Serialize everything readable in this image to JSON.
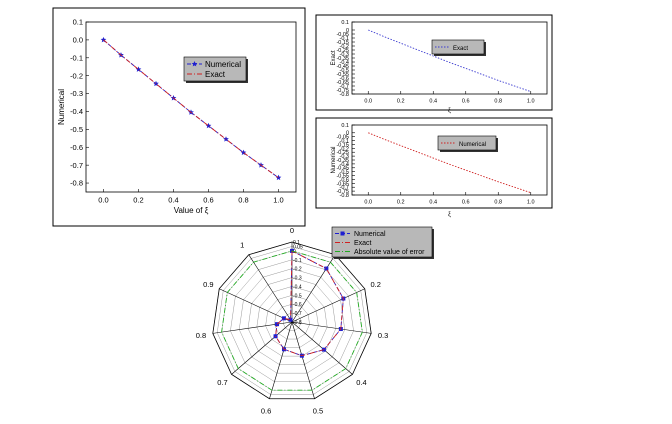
{
  "chart_data": [
    {
      "type": "line",
      "xlabel": "Value of ξ",
      "ylabel": "Numerical",
      "xlim": [
        -0.1,
        1.1
      ],
      "ylim": [
        -0.85,
        0.1
      ],
      "xticks": [
        "0.0",
        "0.2",
        "0.4",
        "0.6",
        "0.8",
        "1.0"
      ],
      "yticks": [
        "0.1",
        "0.0",
        "-0.1",
        "-0.2",
        "-0.3",
        "-0.4",
        "-0.5",
        "-0.6",
        "-0.7",
        "-0.8"
      ],
      "legend_position": "top-right",
      "x": [
        0.0,
        0.1,
        0.2,
        0.3,
        0.4,
        0.5,
        0.6,
        0.7,
        0.8,
        0.9,
        1.0
      ],
      "series": [
        {
          "name": "Numerical",
          "color": "#1f1fd0",
          "style": "dashed-star",
          "values": [
            0.0,
            -0.085,
            -0.165,
            -0.245,
            -0.325,
            -0.405,
            -0.48,
            -0.555,
            -0.63,
            -0.7,
            -0.77
          ]
        },
        {
          "name": "Exact",
          "color": "#d02020",
          "style": "dash-dot",
          "values": [
            0.0,
            -0.085,
            -0.165,
            -0.245,
            -0.325,
            -0.405,
            -0.48,
            -0.555,
            -0.63,
            -0.7,
            -0.77
          ]
        }
      ]
    },
    {
      "type": "line",
      "xlabel": "ξ",
      "ylabel": "Exact",
      "xlim": [
        -0.1,
        1.1
      ],
      "ylim": [
        -0.8,
        0.1
      ],
      "xticks": [
        "0.0",
        "0.2",
        "0.4",
        "0.6",
        "0.8",
        "1.0"
      ],
      "yticks": [
        "0.1",
        "0",
        "-0.05",
        "-0.1",
        "-0.15",
        "-0.2",
        "-0.25",
        "-0.3",
        "-0.35",
        "-0.4",
        "-0.45",
        "-0.5",
        "-0.55",
        "-0.6",
        "-0.65",
        "-0.7",
        "-0.75",
        "-0.8"
      ],
      "legend_position": "top-right",
      "x": [
        0.0,
        0.1,
        0.2,
        0.3,
        0.4,
        0.5,
        0.6,
        0.7,
        0.8,
        0.9,
        1.0
      ],
      "series": [
        {
          "name": "Exact",
          "color": "#3a3ad0",
          "style": "dotted",
          "values": [
            0.0,
            -0.085,
            -0.165,
            -0.245,
            -0.325,
            -0.405,
            -0.48,
            -0.555,
            -0.63,
            -0.7,
            -0.77
          ]
        }
      ]
    },
    {
      "type": "line",
      "xlabel": "ξ",
      "ylabel": "Numerical",
      "xlim": [
        -0.1,
        1.1
      ],
      "ylim": [
        -0.8,
        0.1
      ],
      "xticks": [
        "0.0",
        "0.2",
        "0.4",
        "0.6",
        "0.8",
        "1.0"
      ],
      "yticks": [
        "0.1",
        "0",
        "-0.05",
        "-0.1",
        "-0.15",
        "-0.2",
        "-0.25",
        "-0.3",
        "-0.35",
        "-0.4",
        "-0.45",
        "-0.5",
        "-0.55",
        "-0.6",
        "-0.65",
        "-0.7",
        "-0.75",
        "-0.8"
      ],
      "legend_position": "top-right",
      "x": [
        0.0,
        0.1,
        0.2,
        0.3,
        0.4,
        0.5,
        0.6,
        0.7,
        0.8,
        0.9,
        1.0
      ],
      "series": [
        {
          "name": "Numerical",
          "color": "#d02020",
          "style": "dotted",
          "values": [
            0.0,
            -0.085,
            -0.165,
            -0.245,
            -0.325,
            -0.405,
            -0.48,
            -0.555,
            -0.63,
            -0.7,
            -0.77
          ]
        }
      ]
    },
    {
      "type": "radar",
      "categories": [
        "0",
        "0.1",
        "0.2",
        "0.3",
        "0.4",
        "0.5",
        "0.6",
        "0.7",
        "0.8",
        "0.9",
        "1"
      ],
      "radial_ticks": [
        "0.1",
        "0.05",
        "0",
        "-0.1",
        "-0.2",
        "-0.3",
        "-0.4",
        "-0.5",
        "-0.6",
        "-0.7",
        "-0.8"
      ],
      "rlim": [
        -0.8,
        0.1
      ],
      "legend_position": "top-right",
      "series": [
        {
          "name": "Numerical",
          "color": "#1f1fd0",
          "style": "dashed-square",
          "values": [
            0.0,
            -0.085,
            -0.165,
            -0.245,
            -0.325,
            -0.405,
            -0.48,
            -0.555,
            -0.63,
            -0.7,
            -0.77
          ]
        },
        {
          "name": "Exact",
          "color": "#d02020",
          "style": "dash-dot",
          "values": [
            0.0,
            -0.085,
            -0.165,
            -0.245,
            -0.325,
            -0.405,
            -0.48,
            -0.555,
            -0.63,
            -0.7,
            -0.77
          ]
        },
        {
          "name": "Absolute value of error",
          "color": "#22aa22",
          "style": "dash-dot",
          "values": [
            0.0,
            0.0,
            0.0,
            0.0,
            0.0,
            0.0,
            0.0,
            0.0,
            0.0,
            0.0,
            0.0
          ]
        }
      ]
    }
  ]
}
